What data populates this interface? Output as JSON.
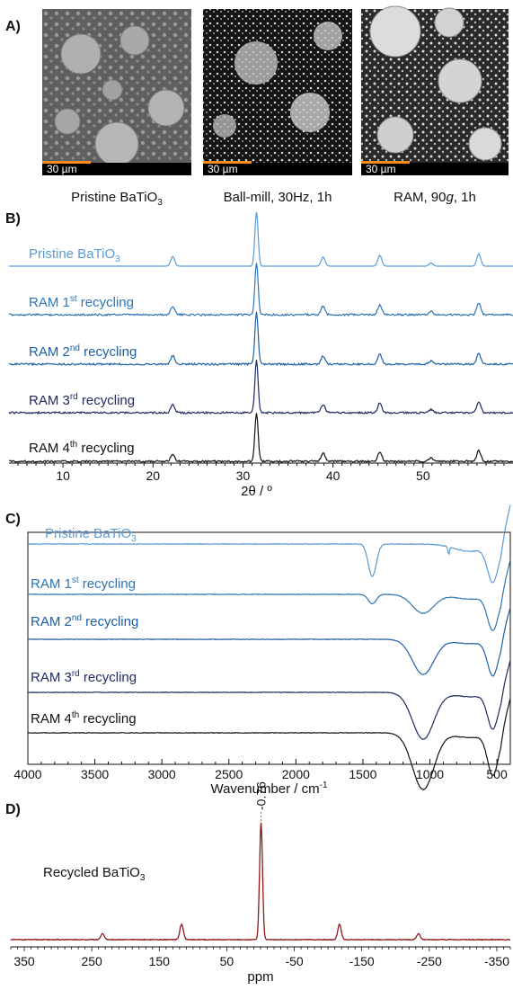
{
  "panel_letters": [
    "A)",
    "B)",
    "C)",
    "D)"
  ],
  "panel_a": {
    "images": [
      {
        "caption_main": "Pristine BaTiO",
        "caption_sub": "3",
        "caption_tail": "",
        "scale_label": "30 µm"
      },
      {
        "caption_main": "Ball-mill, 30Hz, 1h",
        "caption_sub": "",
        "caption_tail": "",
        "scale_label": "30 µm"
      },
      {
        "caption_main": "RAM, 90",
        "caption_italic": "g",
        "caption_sub": "",
        "caption_tail": ", 1h",
        "scale_label": "30 µm"
      }
    ]
  },
  "chart_data": [
    {
      "type": "line",
      "id": "B",
      "xlabel": "2θ / º",
      "xlim": [
        4,
        60
      ],
      "xticks": [
        10,
        20,
        30,
        40,
        50
      ],
      "peaks_2theta": [
        22.2,
        31.5,
        38.9,
        45.2,
        50.9,
        56.2
      ],
      "series": [
        {
          "name": "Pristine BaTiO3",
          "label_main": "Pristine BaTiO",
          "label_sub": "3",
          "label_sup": "",
          "label_tail": "",
          "color": "#5B9BD5",
          "peak_heights": [
            0.18,
            1.0,
            0.17,
            0.2,
            0.06,
            0.23
          ]
        },
        {
          "name": "RAM 1st recycling",
          "label_main": "RAM 1",
          "label_sub": "",
          "label_sup": "st",
          "label_tail": " recycling",
          "color": "#2E75B6",
          "peak_heights": [
            0.17,
            1.0,
            0.16,
            0.19,
            0.06,
            0.22
          ]
        },
        {
          "name": "RAM 2nd recycling",
          "label_main": "RAM 2",
          "label_sub": "",
          "label_sup": "nd",
          "label_tail": " recycling",
          "color": "#1F5FA0",
          "peak_heights": [
            0.16,
            1.0,
            0.16,
            0.2,
            0.06,
            0.21
          ]
        },
        {
          "name": "RAM 3rd recycling",
          "label_main": "RAM 3",
          "label_sub": "",
          "label_sup": "rd",
          "label_tail": " recycling",
          "color": "#1F2A60",
          "peak_heights": [
            0.16,
            1.0,
            0.16,
            0.2,
            0.06,
            0.21
          ]
        },
        {
          "name": "RAM 4th recycling",
          "label_main": "RAM 4",
          "label_sub": "",
          "label_sup": "th",
          "label_tail": " recycling",
          "color": "#111111",
          "peak_heights": [
            0.14,
            1.0,
            0.17,
            0.2,
            0.07,
            0.22
          ]
        }
      ]
    },
    {
      "type": "line",
      "id": "C",
      "xlabel": "Wavenumber / cm",
      "xlabel_sup": "-1",
      "xlim": [
        4000,
        400
      ],
      "xticks": [
        4000,
        3500,
        3000,
        2500,
        2000,
        1500,
        1000,
        500
      ],
      "series": [
        {
          "name": "Pristine BaTiO3",
          "label_main": "Pristine BaTiO",
          "label_sub": "3",
          "label_sup": "",
          "label_tail": "",
          "color": "#5B9BD5",
          "carbonate_1430": 0.45,
          "sharp_860": 0.1,
          "broad_1050": 0.0,
          "band_530": 0.5
        },
        {
          "name": "RAM 1st recycling",
          "label_main": "RAM 1",
          "label_sub": "",
          "label_sup": "st",
          "label_tail": " recycling",
          "color": "#2E75B6",
          "carbonate_1430": 0.15,
          "sharp_860": 0.0,
          "broad_1050": 0.3,
          "band_530": 0.55
        },
        {
          "name": "RAM 2nd recycling",
          "label_main": "RAM 2",
          "label_sub": "",
          "label_sup": "nd",
          "label_tail": " recycling",
          "color": "#1F5FA0",
          "carbonate_1430": 0.0,
          "sharp_860": 0.0,
          "broad_1050": 0.6,
          "band_530": 0.6
        },
        {
          "name": "RAM 3rd recycling",
          "label_main": "RAM 3",
          "label_sub": "",
          "label_sup": "rd",
          "label_tail": " recycling",
          "color": "#1F2A60",
          "carbonate_1430": 0.0,
          "sharp_860": 0.0,
          "broad_1050": 0.8,
          "band_530": 0.6
        },
        {
          "name": "RAM 4th recycling",
          "label_main": "RAM 4",
          "label_sub": "",
          "label_sup": "th",
          "label_tail": " recycling",
          "color": "#111111",
          "carbonate_1430": 0.0,
          "sharp_860": 0.0,
          "broad_1050": 0.9,
          "band_530": 0.65
        }
      ]
    },
    {
      "type": "line",
      "id": "D",
      "xlabel": "ppm",
      "xlim": [
        370,
        -370
      ],
      "xticks": [
        350,
        250,
        150,
        50,
        -50,
        -150,
        -250,
        -350
      ],
      "xtick_labels": [
        "350",
        "250",
        "150",
        "50",
        "-50",
        "-150",
        "-250",
        "-350"
      ],
      "color": "#8B1A1A",
      "series": [
        {
          "name": "Recycled BaTiO3",
          "label_main": "Recycled BaTiO",
          "label_sub": "3",
          "color": "#8B1A1A"
        }
      ],
      "peaks_ppm": [
        -0.76,
        117,
        -117,
        234,
        -234
      ],
      "peak_heights": [
        1.0,
        0.13,
        0.13,
        0.05,
        0.05
      ],
      "annotation": "-0.76"
    }
  ]
}
